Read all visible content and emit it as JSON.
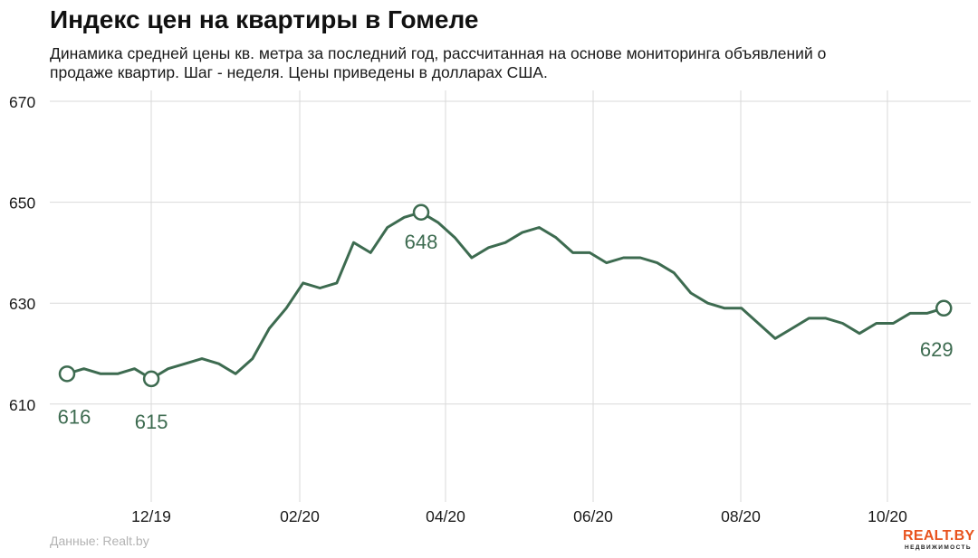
{
  "title": "Индекс цен на квартиры в Гомеле",
  "subtitle": "Динамика средней цены кв. метра за последний год, рассчитанная на основе мониторинга объявлений о продаже квартир. Шаг - неделя. Цены приведены в долларах США.",
  "source": "Данные: Realt.by",
  "logo": {
    "main": "REALT.BY",
    "sub": "НЕДВИЖИМОСТЬ"
  },
  "colors": {
    "line": "#3d6b50",
    "grid": "#d9d9d9",
    "text": "#1a1a1a",
    "logo": "#e8531e"
  },
  "chart_data": {
    "type": "line",
    "title": "Индекс цен на квартиры в Гомеле",
    "xlabel": "",
    "ylabel": "",
    "ylim": [
      590,
      670
    ],
    "yticks": [
      610,
      630,
      650,
      670
    ],
    "xticks": [
      "12/19",
      "02/20",
      "04/20",
      "06/20",
      "08/20",
      "10/20"
    ],
    "grid": true,
    "series": [
      {
        "values": [
          616,
          617,
          616,
          616,
          617,
          615,
          617,
          618,
          619,
          618,
          616,
          619,
          625,
          629,
          634,
          633,
          634,
          642,
          640,
          645,
          647,
          648,
          646,
          643,
          639,
          641,
          642,
          644,
          645,
          643,
          640,
          640,
          638,
          639,
          639,
          638,
          636,
          632,
          630,
          629,
          629,
          626,
          623,
          625,
          627,
          627,
          626,
          624,
          626,
          626,
          628,
          628,
          629
        ]
      }
    ],
    "annotations": [
      {
        "index": 0,
        "label": "616"
      },
      {
        "index": 5,
        "label": "615"
      },
      {
        "index": 21,
        "label": "648"
      },
      {
        "index": 52,
        "label": "629"
      }
    ]
  }
}
